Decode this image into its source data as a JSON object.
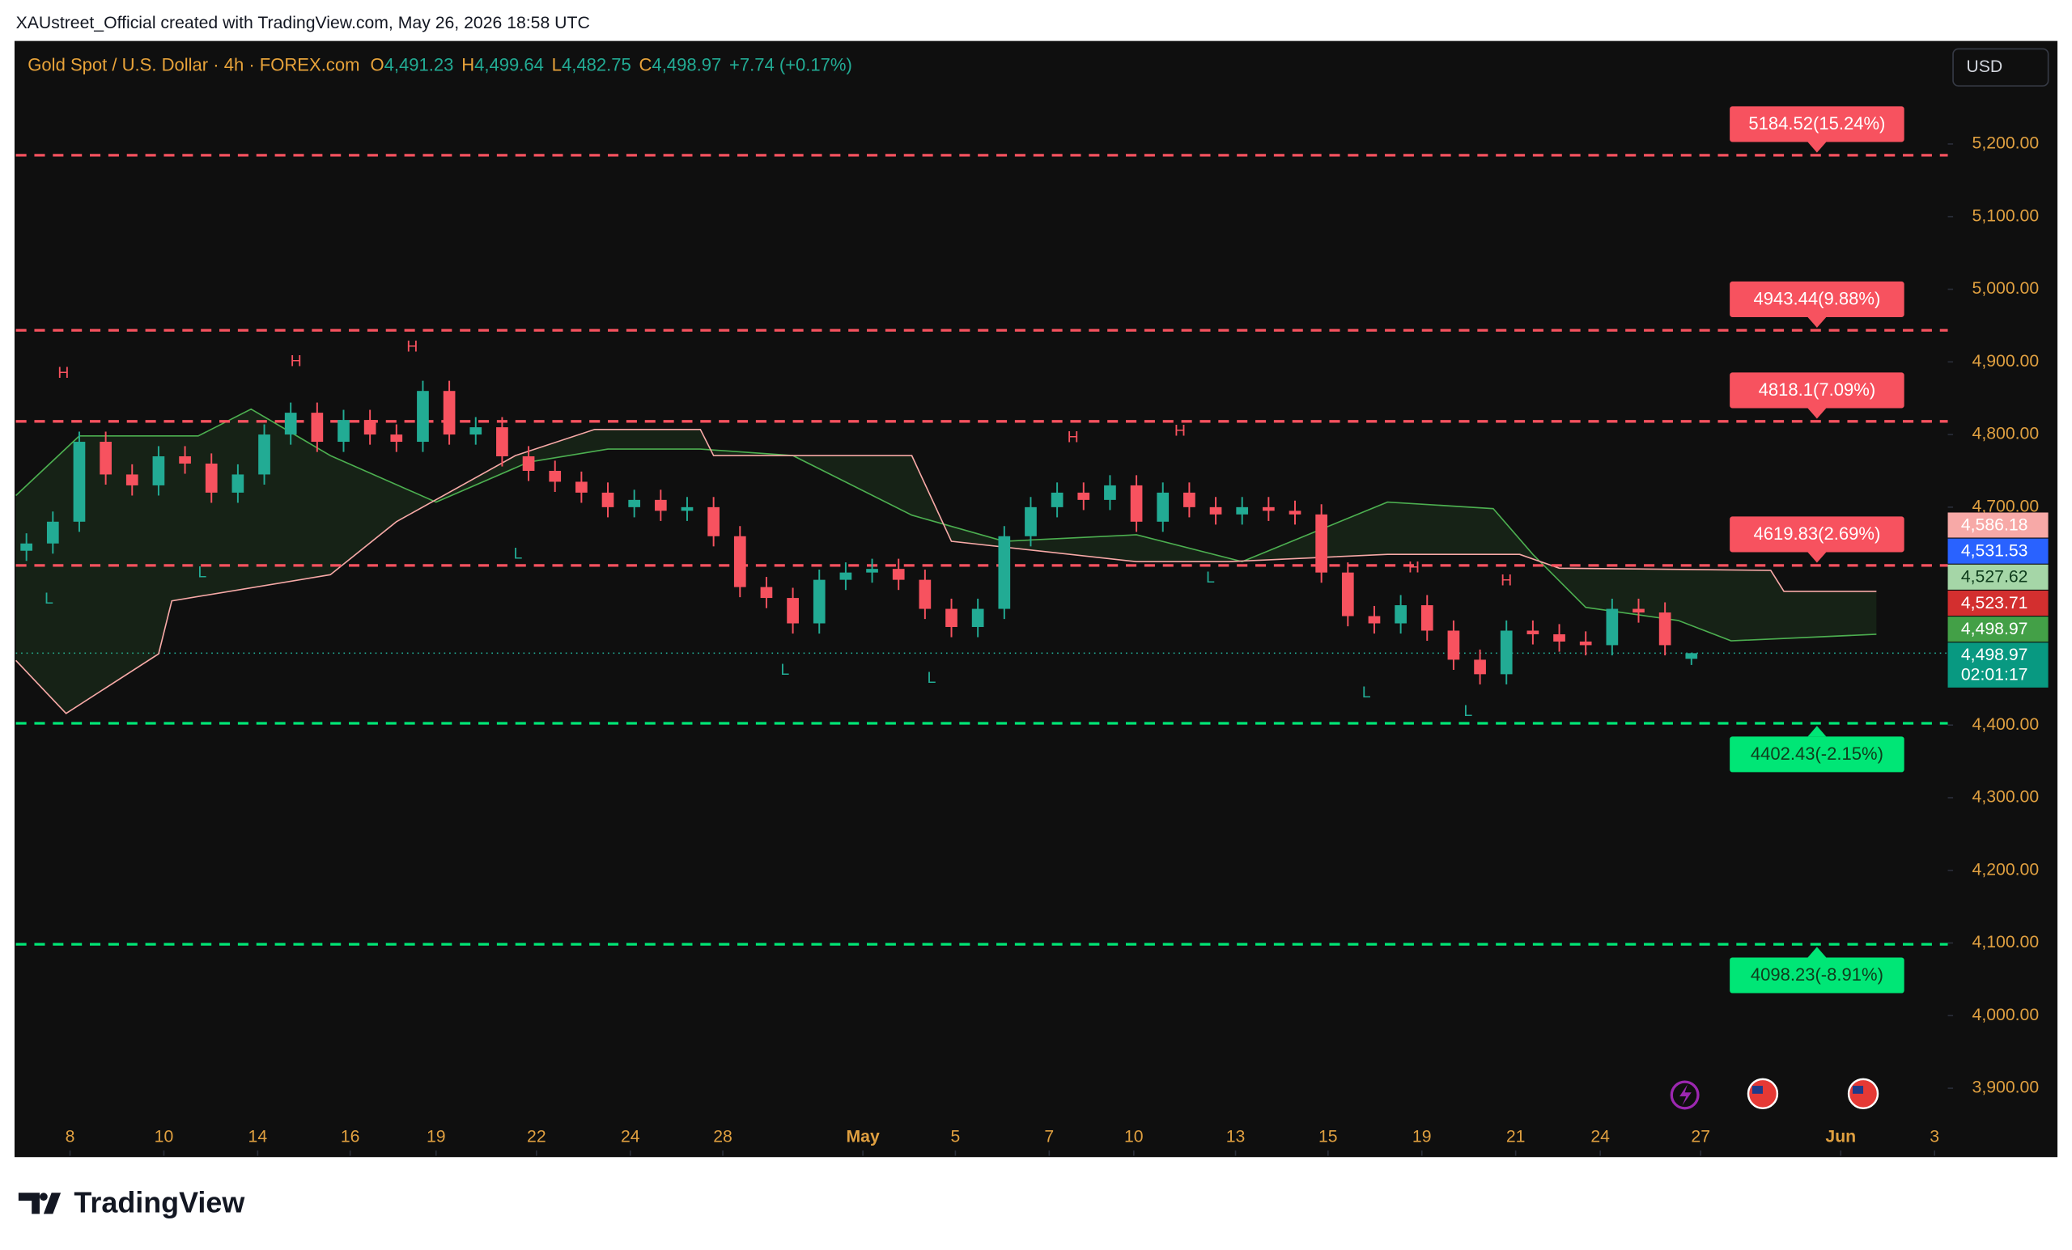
{
  "header": {
    "credit": "XAUstreet_Official created with TradingView.com, May 26, 2026 18:58 UTC",
    "currency": "USD",
    "brand": "TradingView"
  },
  "chart_data": {
    "type": "candlestick",
    "symbol": "Gold Spot / U.S. Dollar · 4h · FOREX.com",
    "ohlc_legend": [
      {
        "key": "O",
        "value": "4,491.23"
      },
      {
        "key": "H",
        "value": "4,499.64"
      },
      {
        "key": "L",
        "value": "4,482.75"
      },
      {
        "key": "C",
        "value": "4,498.97"
      }
    ],
    "change": "+7.74 (+0.17%)",
    "x": [
      0,
      1,
      2,
      3,
      4,
      5,
      6,
      7,
      8,
      9,
      10,
      11,
      12,
      13,
      14,
      15,
      16,
      17,
      18,
      19,
      20,
      21,
      22,
      23,
      24,
      25,
      26,
      27,
      28,
      29,
      30,
      31,
      32,
      33,
      34,
      35,
      36,
      37,
      38,
      39,
      40,
      41,
      42,
      43,
      44,
      45,
      46,
      47,
      48,
      49,
      50,
      51,
      52,
      53,
      54,
      55,
      56,
      57,
      58,
      59,
      60,
      61,
      62,
      63
    ],
    "open": [
      4640,
      4650,
      4680,
      4790,
      4745,
      4730,
      4770,
      4760,
      4720,
      4745,
      4800,
      4830,
      4790,
      4820,
      4800,
      4790,
      4860,
      4800,
      4810,
      4770,
      4750,
      4735,
      4720,
      4700,
      4710,
      4695,
      4700,
      4660,
      4590,
      4575,
      4540,
      4600,
      4610,
      4615,
      4600,
      4560,
      4535,
      4560,
      4660,
      4700,
      4720,
      4710,
      4730,
      4680,
      4720,
      4700,
      4690,
      4700,
      4695,
      4690,
      4610,
      4550,
      4540,
      4565,
      4530,
      4490,
      4470,
      4530,
      4525,
      4515,
      4510,
      4560,
      4555,
      4491.23
    ],
    "high": [
      4664,
      4694,
      4804,
      4804,
      4759,
      4784,
      4784,
      4774,
      4759,
      4814,
      4844,
      4844,
      4834,
      4834,
      4814,
      4874,
      4874,
      4824,
      4824,
      4784,
      4764,
      4749,
      4734,
      4724,
      4724,
      4714,
      4714,
      4674,
      4604,
      4589,
      4614,
      4624,
      4629,
      4629,
      4614,
      4574,
      4574,
      4674,
      4714,
      4734,
      4734,
      4744,
      4744,
      4734,
      4734,
      4714,
      4714,
      4714,
      4709,
      4704,
      4624,
      4564,
      4579,
      4579,
      4544,
      4504,
      4544,
      4544,
      4539,
      4529,
      4574,
      4574,
      4569,
      4499.64
    ],
    "low": [
      4626,
      4636,
      4666,
      4731,
      4716,
      4716,
      4746,
      4706,
      4706,
      4731,
      4786,
      4776,
      4776,
      4786,
      4776,
      4776,
      4786,
      4786,
      4756,
      4736,
      4721,
      4706,
      4686,
      4686,
      4681,
      4681,
      4646,
      4576,
      4561,
      4526,
      4526,
      4586,
      4596,
      4586,
      4546,
      4521,
      4521,
      4546,
      4646,
      4686,
      4696,
      4696,
      4666,
      4666,
      4686,
      4676,
      4676,
      4681,
      4676,
      4596,
      4536,
      4526,
      4526,
      4516,
      4476,
      4456,
      4456,
      4511,
      4501,
      4496,
      4496,
      4541,
      4496,
      4482.75
    ],
    "close": [
      4650,
      4680,
      4790,
      4745,
      4730,
      4770,
      4760,
      4720,
      4745,
      4800,
      4830,
      4790,
      4820,
      4800,
      4790,
      4860,
      4800,
      4810,
      4770,
      4750,
      4735,
      4720,
      4700,
      4710,
      4695,
      4700,
      4660,
      4590,
      4575,
      4540,
      4600,
      4610,
      4615,
      4600,
      4560,
      4535,
      4560,
      4660,
      4700,
      4720,
      4710,
      4730,
      4680,
      4720,
      4700,
      4690,
      4700,
      4695,
      4690,
      4610,
      4550,
      4540,
      4565,
      4530,
      4490,
      4470,
      4530,
      4525,
      4515,
      4510,
      4560,
      4555,
      4510,
      4498.97
    ],
    "up_color": "#22ab94",
    "down_color": "#f7525f",
    "xlim": [
      -0.4,
      72.7
    ],
    "xticks": [
      {
        "value": 1.65,
        "label": "8"
      },
      {
        "value": 5.2,
        "label": "10"
      },
      {
        "value": 8.75,
        "label": "14"
      },
      {
        "value": 12.25,
        "label": "16"
      },
      {
        "value": 15.5,
        "label": "19"
      },
      {
        "value": 19.3,
        "label": "22"
      },
      {
        "value": 22.85,
        "label": "24"
      },
      {
        "value": 26.35,
        "label": "28"
      },
      {
        "value": 31.65,
        "label": "May"
      },
      {
        "value": 35.15,
        "label": "5"
      },
      {
        "value": 38.7,
        "label": "7"
      },
      {
        "value": 41.9,
        "label": "10"
      },
      {
        "value": 45.75,
        "label": "13"
      },
      {
        "value": 49.25,
        "label": "15"
      },
      {
        "value": 52.8,
        "label": "19"
      },
      {
        "value": 56.35,
        "label": "21"
      },
      {
        "value": 59.55,
        "label": "24"
      },
      {
        "value": 63.35,
        "label": "27"
      },
      {
        "value": 68.65,
        "label": "Jun"
      },
      {
        "value": 72.2,
        "label": "3"
      }
    ],
    "ylim": [
      3807,
      5340
    ],
    "yticks": [
      {
        "value": 3900,
        "label": "3,900.00"
      },
      {
        "value": 4000,
        "label": "4,000.00"
      },
      {
        "value": 4100,
        "label": "4,100.00"
      },
      {
        "value": 4200,
        "label": "4,200.00"
      },
      {
        "value": 4300,
        "label": "4,300.00"
      },
      {
        "value": 4400,
        "label": "4,400.00"
      },
      {
        "value": 4500,
        "label": "4,500.00"
      },
      {
        "value": 4600,
        "label": "4,600.00"
      },
      {
        "value": 4700,
        "label": "4,700.00"
      },
      {
        "value": 4800,
        "label": "4,800.00"
      },
      {
        "value": 4900,
        "label": "4,900.00"
      },
      {
        "value": 5000,
        "label": "5,000.00"
      },
      {
        "value": 5100,
        "label": "5,100.00"
      },
      {
        "value": 5200,
        "label": "5,200.00"
      }
    ],
    "cloud": {
      "fill": "rgba(67,160,71,0.13)",
      "span_a": {
        "color": "#4caf50",
        "x": [
          -0.4,
          2,
          6.5,
          8.5,
          11.5,
          15.5,
          19,
          22,
          25.5,
          29,
          33.5,
          37,
          42,
          46,
          51.5,
          55.5,
          57,
          59,
          62.5,
          64.5,
          70
        ],
        "values": [
          4716,
          4798,
          4798,
          4835,
          4771,
          4707,
          4762,
          4780,
          4780,
          4771,
          4689,
          4653,
          4662,
          4625,
          4707,
          4698,
          4635,
          4562,
          4544,
          4516,
          4525
        ]
      },
      "span_b": {
        "color": "#f7a9a7",
        "x": [
          -0.4,
          1.5,
          5,
          5.5,
          11.5,
          14,
          18.5,
          21.5,
          25.5,
          26,
          33.5,
          35,
          42,
          45.5,
          51.5,
          56.5,
          58,
          66,
          66.5,
          70
        ],
        "values": [
          4489,
          4416,
          4498,
          4571,
          4607,
          4680,
          4771,
          4807,
          4807,
          4771,
          4771,
          4653,
          4625,
          4625,
          4635,
          4635,
          4616,
          4613,
          4584,
          4584
        ]
      }
    },
    "levels": [
      {
        "value": 5184.52,
        "label": "5184.52(15.24%)",
        "color": "#f7525f"
      },
      {
        "value": 4943.44,
        "label": "4943.44(9.88%)",
        "color": "#f7525f"
      },
      {
        "value": 4818.1,
        "label": "4818.1(7.09%)",
        "color": "#f7525f"
      },
      {
        "value": 4619.83,
        "label": "4619.83(2.69%)",
        "color": "#f7525f"
      },
      {
        "value": 4402.43,
        "label": "4402.43(-2.15%)",
        "color": "#00e676"
      },
      {
        "value": 4098.23,
        "label": "4098.23(-8.91%)",
        "color": "#00e676"
      }
    ],
    "pivots": [
      {
        "label": "H",
        "x": 1.4,
        "value": 4884
      },
      {
        "label": "H",
        "x": 10.2,
        "value": 4900
      },
      {
        "label": "H",
        "x": 14.6,
        "value": 4920
      },
      {
        "label": "L",
        "x": 0.85,
        "value": 4573
      },
      {
        "label": "L",
        "x": 6.65,
        "value": 4609
      },
      {
        "label": "L",
        "x": 18.6,
        "value": 4635
      },
      {
        "label": "H",
        "x": 39.6,
        "value": 4795
      },
      {
        "label": "H",
        "x": 43.65,
        "value": 4804
      },
      {
        "label": "L",
        "x": 28.7,
        "value": 4475
      },
      {
        "label": "L",
        "x": 34.25,
        "value": 4464
      },
      {
        "label": "L",
        "x": 44.8,
        "value": 4602
      },
      {
        "label": "H",
        "x": 52.5,
        "value": 4616
      },
      {
        "label": "H",
        "x": 56,
        "value": 4598
      },
      {
        "label": "L",
        "x": 50.7,
        "value": 4444
      },
      {
        "label": "L",
        "x": 54.55,
        "value": 4418
      }
    ],
    "price_tags": [
      {
        "label": "4,586.18",
        "color": "#f7a9a7"
      },
      {
        "label": "4,531.53",
        "color": "#2962ff"
      },
      {
        "label": "4,527.62",
        "color": "#a5d6a7"
      },
      {
        "label": "4,523.71",
        "color": "#d32f2f"
      },
      {
        "label": "4,498.97",
        "color": "#43a047"
      },
      {
        "label": "4,498.97",
        "color": "#089981"
      }
    ],
    "countdown": "02:01:17"
  }
}
